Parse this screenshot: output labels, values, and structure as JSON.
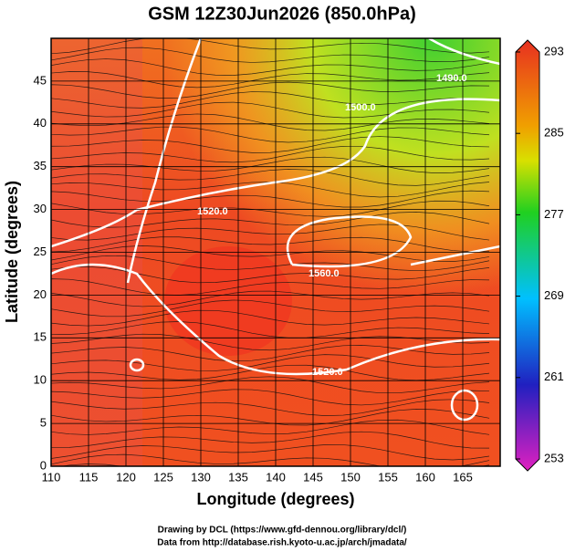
{
  "title": "GSM 12Z30Jun2026 (850.0hPa)",
  "x_axis": {
    "label": "Longitude (degrees)",
    "lim": [
      110,
      170
    ],
    "ticks": [
      110,
      115,
      120,
      125,
      130,
      135,
      140,
      145,
      150,
      155,
      160,
      165
    ]
  },
  "y_axis": {
    "label": "Latitude (degrees)",
    "lim": [
      0,
      50
    ],
    "ticks": [
      0,
      5,
      10,
      15,
      20,
      25,
      30,
      35,
      40,
      45
    ]
  },
  "colorbar": {
    "lim": [
      253,
      293
    ],
    "ticks": [
      253,
      261,
      269,
      277,
      285,
      293
    ]
  },
  "contour_labels": [
    "1520.0",
    "1560.0",
    "1520.0",
    "1500.0",
    "1490.0"
  ],
  "footer": [
    "Drawing by DCL (https://www.gfd-dennou.org/library/dcl/)",
    "Data from http://database.rish.kyoto-u.ac.jp/arch/jmadata/"
  ]
}
